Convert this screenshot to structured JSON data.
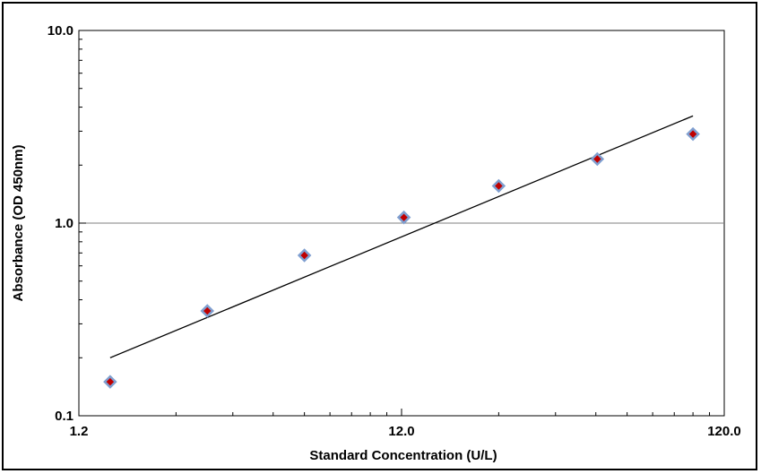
{
  "chart_data": {
    "type": "scatter",
    "xlabel": "Standard Concentration (U/L)",
    "ylabel": "Absorbance (OD 450nm)",
    "x_scale": "log",
    "y_scale": "log",
    "xlim": [
      1.2,
      120.0
    ],
    "ylim": [
      0.1,
      10.0
    ],
    "x_tick_labels": [
      "1.2",
      "12.0",
      "120.0"
    ],
    "y_tick_labels": [
      "0.1",
      "1.0",
      "10.0"
    ],
    "grid": "horizontal line at y=1.0 only",
    "legend": "none",
    "series": [
      {
        "x": [
          1.5,
          3.0,
          6.0,
          12.2,
          24.0,
          48.5,
          96.0
        ],
        "y": [
          0.15,
          0.35,
          0.68,
          1.07,
          1.56,
          2.15,
          2.9
        ],
        "marker": "diamond",
        "marker_fill": "#c00000",
        "marker_edge": "#7f9fd0"
      }
    ],
    "fit_line": {
      "type": "power",
      "x": [
        1.5,
        96.0
      ],
      "y": [
        0.2,
        3.6
      ],
      "color": "#000000"
    }
  }
}
